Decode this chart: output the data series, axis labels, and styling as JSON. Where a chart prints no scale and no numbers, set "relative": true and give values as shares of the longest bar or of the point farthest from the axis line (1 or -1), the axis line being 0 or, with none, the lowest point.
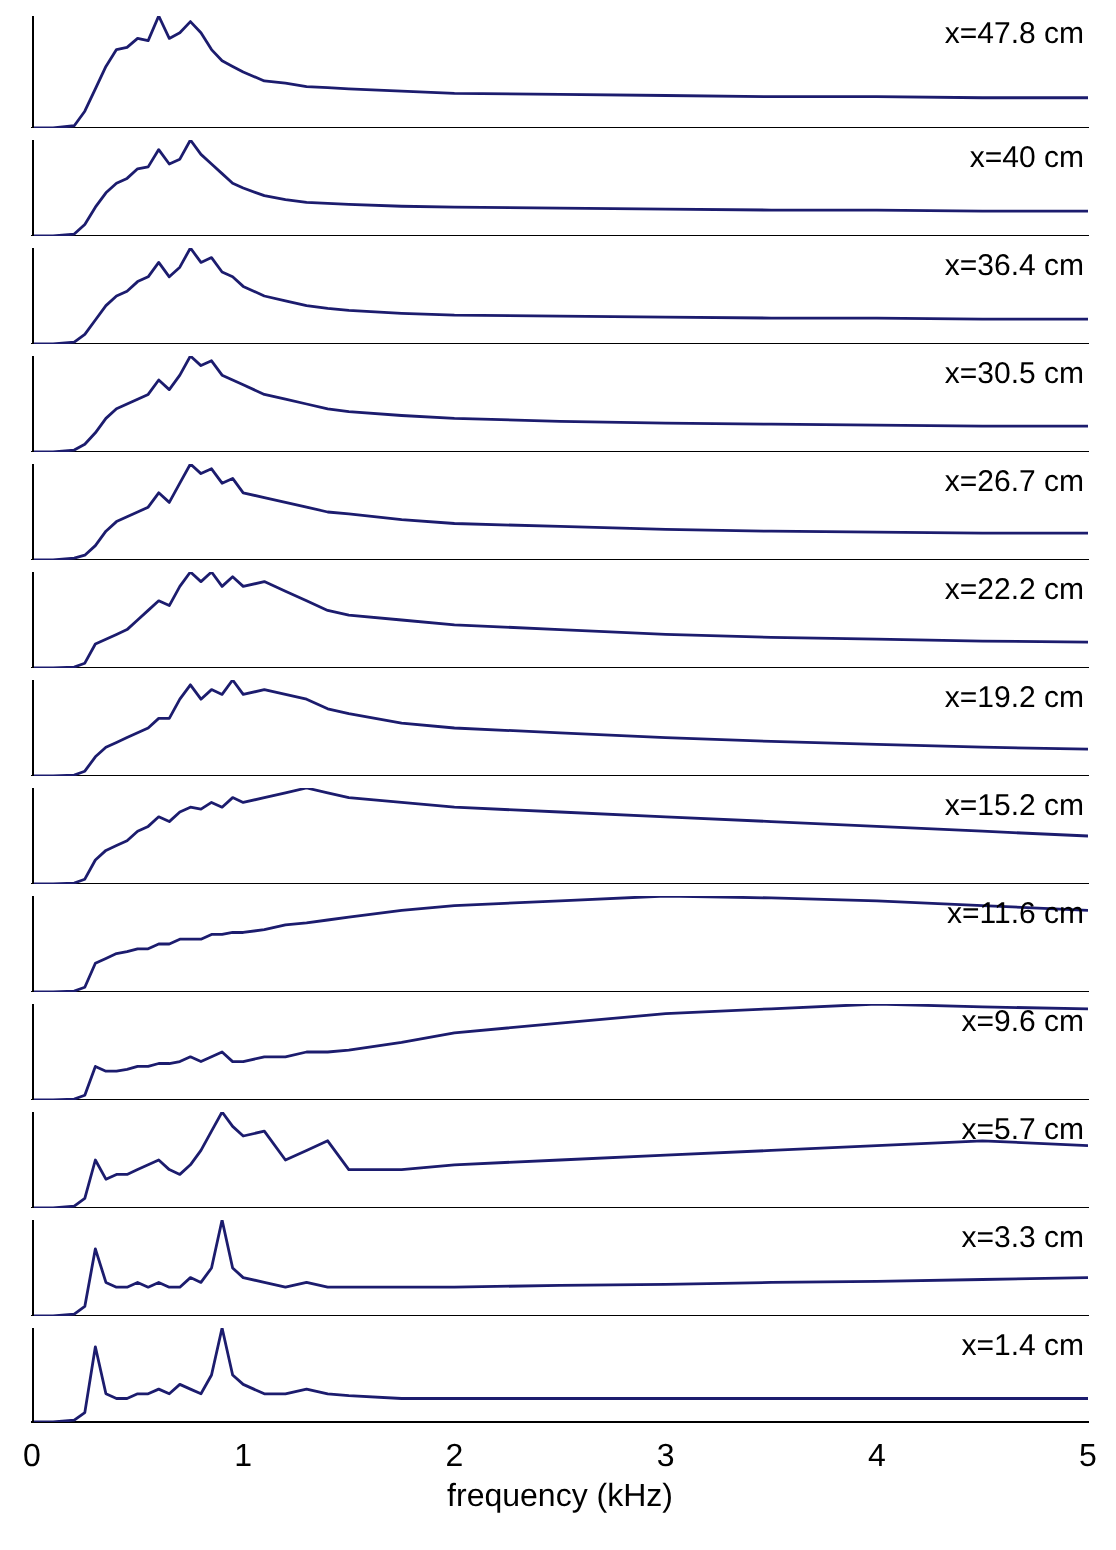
{
  "chart_data": [
    {
      "type": "line",
      "relative": true,
      "color": "#1c1c6e",
      "annotations": [
        "x=47.8 cm"
      ],
      "xlim": [
        0,
        5
      ],
      "xticks": [
        0,
        1,
        2,
        3,
        4,
        5
      ],
      "tick_labels": false,
      "x": [
        0,
        0.1,
        0.2,
        0.25,
        0.3,
        0.35,
        0.4,
        0.45,
        0.5,
        0.55,
        0.6,
        0.65,
        0.7,
        0.75,
        0.8,
        0.85,
        0.9,
        0.95,
        1.0,
        1.1,
        1.2,
        1.3,
        1.4,
        1.5,
        1.75,
        2,
        2.5,
        3,
        3.5,
        4,
        4.5,
        5
      ],
      "values": [
        0,
        0,
        0.02,
        0.15,
        0.35,
        0.55,
        0.7,
        0.72,
        0.8,
        0.78,
        1.0,
        0.8,
        0.85,
        0.95,
        0.85,
        0.7,
        0.6,
        0.55,
        0.5,
        0.42,
        0.4,
        0.37,
        0.36,
        0.35,
        0.33,
        0.31,
        0.3,
        0.29,
        0.28,
        0.28,
        0.27,
        0.27
      ]
    },
    {
      "type": "line",
      "relative": true,
      "color": "#1c1c6e",
      "annotations": [
        "x=40 cm"
      ],
      "xlim": [
        0,
        5
      ],
      "xticks": [
        0,
        1,
        2,
        3,
        4,
        5
      ],
      "tick_labels": false,
      "x": [
        0,
        0.1,
        0.2,
        0.25,
        0.3,
        0.35,
        0.4,
        0.45,
        0.5,
        0.55,
        0.6,
        0.65,
        0.7,
        0.75,
        0.8,
        0.85,
        0.9,
        0.95,
        1.0,
        1.1,
        1.2,
        1.3,
        1.4,
        1.5,
        1.75,
        2,
        2.5,
        3,
        3.5,
        4,
        4.5,
        5
      ],
      "values": [
        0,
        0,
        0.02,
        0.12,
        0.3,
        0.45,
        0.55,
        0.6,
        0.7,
        0.72,
        0.9,
        0.75,
        0.8,
        1.0,
        0.85,
        0.75,
        0.65,
        0.55,
        0.5,
        0.42,
        0.38,
        0.35,
        0.34,
        0.33,
        0.31,
        0.3,
        0.29,
        0.28,
        0.27,
        0.27,
        0.26,
        0.26
      ]
    },
    {
      "type": "line",
      "relative": true,
      "color": "#1c1c6e",
      "annotations": [
        "x=36.4 cm"
      ],
      "xlim": [
        0,
        5
      ],
      "xticks": [
        0,
        1,
        2,
        3,
        4,
        5
      ],
      "tick_labels": false,
      "x": [
        0,
        0.1,
        0.2,
        0.25,
        0.3,
        0.35,
        0.4,
        0.45,
        0.5,
        0.55,
        0.6,
        0.65,
        0.7,
        0.75,
        0.8,
        0.85,
        0.9,
        0.95,
        1.0,
        1.1,
        1.2,
        1.3,
        1.4,
        1.5,
        1.75,
        2,
        2.5,
        3,
        3.5,
        4,
        4.5,
        5
      ],
      "values": [
        0,
        0,
        0.02,
        0.1,
        0.25,
        0.4,
        0.5,
        0.55,
        0.65,
        0.7,
        0.85,
        0.7,
        0.8,
        1.0,
        0.85,
        0.9,
        0.75,
        0.7,
        0.6,
        0.5,
        0.45,
        0.4,
        0.37,
        0.35,
        0.32,
        0.3,
        0.29,
        0.28,
        0.27,
        0.27,
        0.26,
        0.26
      ]
    },
    {
      "type": "line",
      "relative": true,
      "color": "#1c1c6e",
      "annotations": [
        "x=30.5 cm"
      ],
      "xlim": [
        0,
        5
      ],
      "xticks": [
        0,
        1,
        2,
        3,
        4,
        5
      ],
      "tick_labels": false,
      "x": [
        0,
        0.1,
        0.2,
        0.25,
        0.3,
        0.35,
        0.4,
        0.45,
        0.5,
        0.55,
        0.6,
        0.65,
        0.7,
        0.75,
        0.8,
        0.85,
        0.9,
        0.95,
        1.0,
        1.1,
        1.2,
        1.3,
        1.4,
        1.5,
        1.75,
        2,
        2.5,
        3,
        3.5,
        4,
        4.5,
        5
      ],
      "values": [
        0,
        0,
        0.02,
        0.08,
        0.2,
        0.35,
        0.45,
        0.5,
        0.55,
        0.6,
        0.75,
        0.65,
        0.8,
        1.0,
        0.9,
        0.95,
        0.8,
        0.75,
        0.7,
        0.6,
        0.55,
        0.5,
        0.45,
        0.42,
        0.38,
        0.35,
        0.32,
        0.3,
        0.29,
        0.28,
        0.27,
        0.27
      ]
    },
    {
      "type": "line",
      "relative": true,
      "color": "#1c1c6e",
      "annotations": [
        "x=26.7 cm"
      ],
      "xlim": [
        0,
        5
      ],
      "xticks": [
        0,
        1,
        2,
        3,
        4,
        5
      ],
      "tick_labels": false,
      "x": [
        0,
        0.1,
        0.2,
        0.25,
        0.3,
        0.35,
        0.4,
        0.45,
        0.5,
        0.55,
        0.6,
        0.65,
        0.7,
        0.75,
        0.8,
        0.85,
        0.9,
        0.95,
        1.0,
        1.1,
        1.2,
        1.3,
        1.4,
        1.5,
        1.75,
        2,
        2.5,
        3,
        3.5,
        4,
        4.5,
        5
      ],
      "values": [
        0,
        0,
        0.02,
        0.05,
        0.15,
        0.3,
        0.4,
        0.45,
        0.5,
        0.55,
        0.7,
        0.6,
        0.8,
        1.0,
        0.9,
        0.95,
        0.8,
        0.85,
        0.7,
        0.65,
        0.6,
        0.55,
        0.5,
        0.48,
        0.42,
        0.38,
        0.35,
        0.32,
        0.3,
        0.29,
        0.28,
        0.28
      ]
    },
    {
      "type": "line",
      "relative": true,
      "color": "#1c1c6e",
      "annotations": [
        "x=22.2 cm"
      ],
      "xlim": [
        0,
        5
      ],
      "xticks": [
        0,
        1,
        2,
        3,
        4,
        5
      ],
      "tick_labels": false,
      "x": [
        0,
        0.1,
        0.2,
        0.25,
        0.3,
        0.35,
        0.4,
        0.45,
        0.5,
        0.55,
        0.6,
        0.65,
        0.7,
        0.75,
        0.8,
        0.85,
        0.9,
        0.95,
        1.0,
        1.1,
        1.2,
        1.3,
        1.4,
        1.5,
        1.75,
        2,
        2.5,
        3,
        3.5,
        4,
        4.5,
        5
      ],
      "values": [
        0,
        0,
        0.01,
        0.05,
        0.25,
        0.3,
        0.35,
        0.4,
        0.5,
        0.6,
        0.7,
        0.65,
        0.85,
        1.0,
        0.9,
        1.0,
        0.85,
        0.95,
        0.85,
        0.9,
        0.8,
        0.7,
        0.6,
        0.55,
        0.5,
        0.45,
        0.4,
        0.35,
        0.32,
        0.3,
        0.28,
        0.27
      ]
    },
    {
      "type": "line",
      "relative": true,
      "color": "#1c1c6e",
      "annotations": [
        "x=19.2 cm"
      ],
      "xlim": [
        0,
        5
      ],
      "xticks": [
        0,
        1,
        2,
        3,
        4,
        5
      ],
      "tick_labels": false,
      "x": [
        0,
        0.1,
        0.2,
        0.25,
        0.3,
        0.35,
        0.4,
        0.45,
        0.5,
        0.55,
        0.6,
        0.65,
        0.7,
        0.75,
        0.8,
        0.85,
        0.9,
        0.95,
        1.0,
        1.1,
        1.2,
        1.3,
        1.4,
        1.5,
        1.75,
        2,
        2.5,
        3,
        3.5,
        4,
        4.5,
        5
      ],
      "values": [
        0,
        0,
        0.01,
        0.05,
        0.2,
        0.3,
        0.35,
        0.4,
        0.45,
        0.5,
        0.6,
        0.6,
        0.8,
        0.95,
        0.8,
        0.9,
        0.85,
        1.0,
        0.85,
        0.9,
        0.85,
        0.8,
        0.7,
        0.65,
        0.55,
        0.5,
        0.45,
        0.4,
        0.36,
        0.33,
        0.3,
        0.28
      ]
    },
    {
      "type": "line",
      "relative": true,
      "color": "#1c1c6e",
      "annotations": [
        "x=15.2 cm"
      ],
      "xlim": [
        0,
        5
      ],
      "xticks": [
        0,
        1,
        2,
        3,
        4,
        5
      ],
      "tick_labels": false,
      "x": [
        0,
        0.1,
        0.2,
        0.25,
        0.3,
        0.35,
        0.4,
        0.45,
        0.5,
        0.55,
        0.6,
        0.65,
        0.7,
        0.75,
        0.8,
        0.85,
        0.9,
        0.95,
        1.0,
        1.1,
        1.2,
        1.3,
        1.4,
        1.5,
        1.75,
        2,
        2.5,
        3,
        3.5,
        4,
        4.5,
        5
      ],
      "values": [
        0,
        0,
        0.01,
        0.05,
        0.25,
        0.35,
        0.4,
        0.45,
        0.55,
        0.6,
        0.7,
        0.65,
        0.75,
        0.8,
        0.78,
        0.85,
        0.8,
        0.9,
        0.85,
        0.9,
        0.95,
        1.0,
        0.95,
        0.9,
        0.85,
        0.8,
        0.75,
        0.7,
        0.65,
        0.6,
        0.55,
        0.5
      ]
    },
    {
      "type": "line",
      "relative": true,
      "color": "#1c1c6e",
      "annotations": [
        "x=11.6 cm"
      ],
      "xlim": [
        0,
        5
      ],
      "xticks": [
        0,
        1,
        2,
        3,
        4,
        5
      ],
      "tick_labels": false,
      "x": [
        0,
        0.1,
        0.2,
        0.25,
        0.3,
        0.35,
        0.4,
        0.45,
        0.5,
        0.55,
        0.6,
        0.65,
        0.7,
        0.75,
        0.8,
        0.85,
        0.9,
        0.95,
        1.0,
        1.1,
        1.2,
        1.3,
        1.4,
        1.5,
        1.75,
        2,
        2.5,
        3,
        3.5,
        4,
        4.5,
        5
      ],
      "values": [
        0,
        0,
        0.01,
        0.05,
        0.3,
        0.35,
        0.4,
        0.42,
        0.45,
        0.45,
        0.5,
        0.5,
        0.55,
        0.55,
        0.55,
        0.6,
        0.6,
        0.62,
        0.62,
        0.65,
        0.7,
        0.72,
        0.75,
        0.78,
        0.85,
        0.9,
        0.95,
        1.0,
        0.98,
        0.95,
        0.9,
        0.85
      ]
    },
    {
      "type": "line",
      "relative": true,
      "color": "#1c1c6e",
      "annotations": [
        "x=9.6 cm"
      ],
      "xlim": [
        0,
        5
      ],
      "xticks": [
        0,
        1,
        2,
        3,
        4,
        5
      ],
      "tick_labels": false,
      "x": [
        0,
        0.1,
        0.2,
        0.25,
        0.3,
        0.35,
        0.4,
        0.45,
        0.5,
        0.55,
        0.6,
        0.65,
        0.7,
        0.75,
        0.8,
        0.85,
        0.9,
        0.95,
        1.0,
        1.1,
        1.2,
        1.3,
        1.4,
        1.5,
        1.75,
        2,
        2.5,
        3,
        3.5,
        4,
        4.5,
        5
      ],
      "values": [
        0,
        0,
        0.01,
        0.05,
        0.35,
        0.3,
        0.3,
        0.32,
        0.35,
        0.35,
        0.38,
        0.38,
        0.4,
        0.45,
        0.4,
        0.45,
        0.5,
        0.4,
        0.4,
        0.45,
        0.45,
        0.5,
        0.5,
        0.52,
        0.6,
        0.7,
        0.8,
        0.9,
        0.95,
        1.0,
        0.97,
        0.95
      ]
    },
    {
      "type": "line",
      "relative": true,
      "color": "#1c1c6e",
      "annotations": [
        "x=5.7 cm"
      ],
      "xlim": [
        0,
        5
      ],
      "xticks": [
        0,
        1,
        2,
        3,
        4,
        5
      ],
      "tick_labels": false,
      "x": [
        0,
        0.1,
        0.2,
        0.25,
        0.3,
        0.35,
        0.4,
        0.45,
        0.5,
        0.55,
        0.6,
        0.65,
        0.7,
        0.75,
        0.8,
        0.85,
        0.9,
        0.95,
        1.0,
        1.1,
        1.2,
        1.3,
        1.4,
        1.5,
        1.75,
        2,
        2.5,
        3,
        3.5,
        4,
        4.5,
        5
      ],
      "values": [
        0,
        0,
        0.02,
        0.1,
        0.5,
        0.3,
        0.35,
        0.35,
        0.4,
        0.45,
        0.5,
        0.4,
        0.35,
        0.45,
        0.6,
        0.8,
        1.0,
        0.85,
        0.75,
        0.8,
        0.5,
        0.6,
        0.7,
        0.4,
        0.4,
        0.45,
        0.5,
        0.55,
        0.6,
        0.65,
        0.7,
        0.65
      ]
    },
    {
      "type": "line",
      "relative": true,
      "color": "#1c1c6e",
      "annotations": [
        "x=3.3 cm"
      ],
      "xlim": [
        0,
        5
      ],
      "xticks": [
        0,
        1,
        2,
        3,
        4,
        5
      ],
      "tick_labels": false,
      "x": [
        0,
        0.1,
        0.2,
        0.25,
        0.3,
        0.35,
        0.4,
        0.45,
        0.5,
        0.55,
        0.6,
        0.65,
        0.7,
        0.75,
        0.8,
        0.85,
        0.9,
        0.95,
        1.0,
        1.1,
        1.2,
        1.3,
        1.4,
        1.5,
        1.75,
        2,
        2.5,
        3,
        3.5,
        4,
        4.5,
        5
      ],
      "values": [
        0,
        0,
        0.02,
        0.1,
        0.7,
        0.35,
        0.3,
        0.3,
        0.35,
        0.3,
        0.35,
        0.3,
        0.3,
        0.4,
        0.35,
        0.5,
        1.0,
        0.5,
        0.4,
        0.35,
        0.3,
        0.35,
        0.3,
        0.3,
        0.3,
        0.3,
        0.32,
        0.33,
        0.35,
        0.36,
        0.38,
        0.4
      ]
    },
    {
      "type": "line",
      "relative": true,
      "color": "#1c1c6e",
      "annotations": [
        "x=1.4 cm"
      ],
      "xlim": [
        0,
        5
      ],
      "xticks": [
        0,
        1,
        2,
        3,
        4,
        5
      ],
      "tick_labels": "x",
      "xlabel": "frequency (kHz)",
      "x": [
        0,
        0.1,
        0.2,
        0.25,
        0.3,
        0.35,
        0.4,
        0.45,
        0.5,
        0.55,
        0.6,
        0.65,
        0.7,
        0.75,
        0.8,
        0.85,
        0.9,
        0.95,
        1.0,
        1.1,
        1.2,
        1.3,
        1.4,
        1.5,
        1.75,
        2,
        2.5,
        3,
        3.5,
        4,
        4.5,
        5
      ],
      "values": [
        0,
        0,
        0.02,
        0.1,
        0.8,
        0.3,
        0.25,
        0.25,
        0.3,
        0.3,
        0.35,
        0.3,
        0.4,
        0.35,
        0.3,
        0.5,
        1.0,
        0.5,
        0.4,
        0.3,
        0.3,
        0.35,
        0.3,
        0.28,
        0.25,
        0.25,
        0.25,
        0.25,
        0.25,
        0.25,
        0.25,
        0.25
      ]
    }
  ]
}
